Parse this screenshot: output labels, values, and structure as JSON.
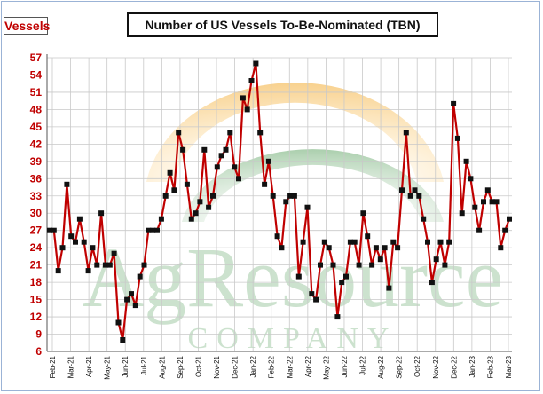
{
  "chart_data": {
    "type": "line",
    "title": "Number of US Vessels To-Be-Nominated (TBN)",
    "ylabel": "Vessels",
    "xlabel": "",
    "ylim": [
      6,
      57
    ],
    "yticks": [
      6,
      9,
      12,
      15,
      18,
      21,
      24,
      27,
      30,
      33,
      36,
      39,
      42,
      45,
      48,
      51,
      54,
      57
    ],
    "xtick_labels": [
      "Feb-21",
      "Mar-21",
      "Apr-21",
      "May-21",
      "Jun-21",
      "Jul-21",
      "Aug-21",
      "Sep-21",
      "Oct-21",
      "Nov-21",
      "Dec-21",
      "Jan-22",
      "Feb-22",
      "Mar-22",
      "Apr-22",
      "May-22",
      "Jun-22",
      "Jul-22",
      "Aug-22",
      "Sep-22",
      "Oct-22",
      "Nov-22",
      "Dec-22",
      "Jan-23",
      "Feb-23",
      "Mar-23"
    ],
    "grid": true,
    "series": [
      {
        "color": "#c00000",
        "marker_color": "#111111",
        "values": [
          27,
          27,
          20,
          24,
          35,
          26,
          25,
          29,
          25,
          20,
          24,
          21,
          30,
          21,
          21,
          23,
          11,
          8,
          15,
          16,
          14,
          19,
          21,
          27,
          27,
          27,
          29,
          33,
          37,
          34,
          44,
          41,
          35,
          29,
          30,
          32,
          41,
          31,
          33,
          38,
          40,
          41,
          44,
          38,
          36,
          50,
          48,
          53,
          56,
          44,
          35,
          39,
          33,
          26,
          24,
          32,
          33,
          33,
          19,
          25,
          31,
          16,
          15,
          21,
          25,
          24,
          21,
          12,
          18,
          19,
          25,
          25,
          21,
          30,
          26,
          21,
          24,
          22,
          24,
          17,
          25,
          24,
          34,
          44,
          33,
          34,
          33,
          29,
          25,
          18,
          22,
          25,
          21,
          25,
          49,
          43,
          30,
          39,
          36,
          31,
          27,
          32,
          34,
          32,
          32,
          24,
          27,
          29
        ]
      }
    ]
  },
  "watermark": {
    "brand": "AgResource",
    "sub": "COMPANY"
  }
}
